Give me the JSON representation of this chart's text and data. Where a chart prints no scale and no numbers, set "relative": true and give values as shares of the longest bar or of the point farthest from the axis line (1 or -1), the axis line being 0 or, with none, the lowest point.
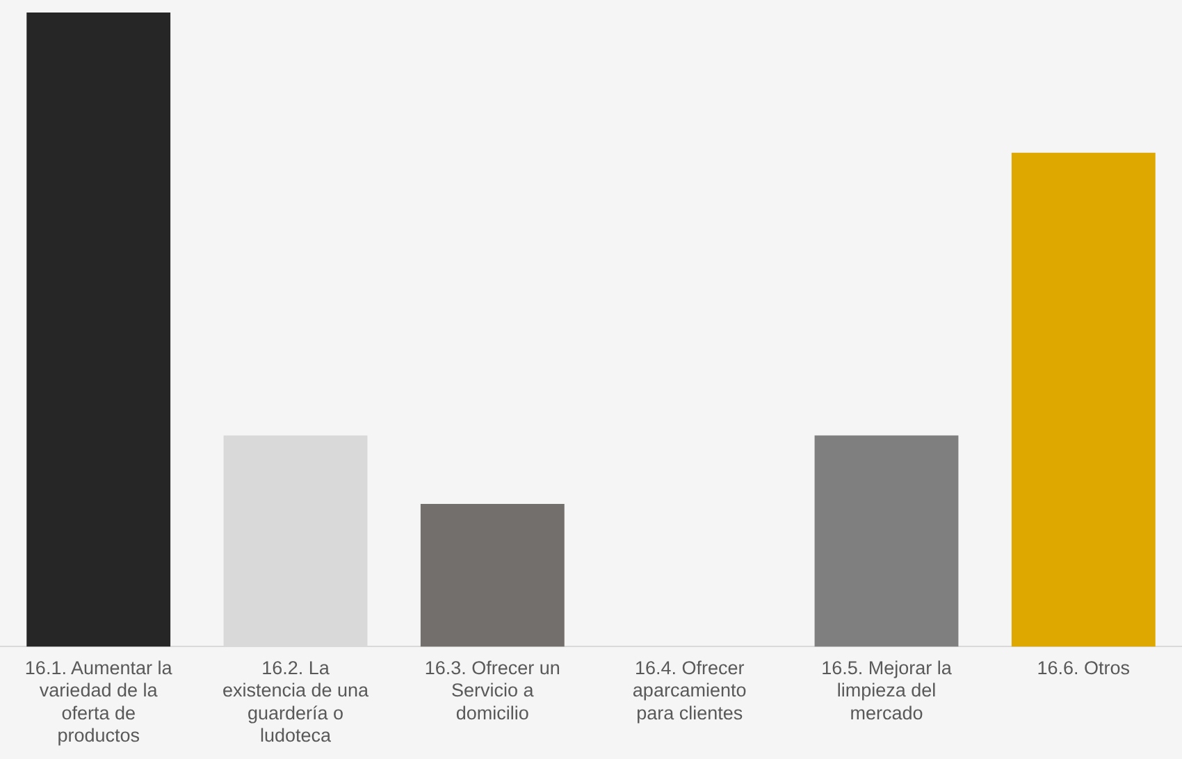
{
  "chart_data": {
    "type": "bar",
    "relative": true,
    "categories": [
      "16.1. Aumentar la variedad de la oferta de productos",
      "16.2. La existencia de una guardería o ludoteca",
      "16.3. Ofrecer un Servicio a domicilio",
      "16.4. Ofrecer aparcamiento para clientes",
      "16.5. Mejorar la limpieza del mercado",
      "16.6. Otros"
    ],
    "values": [
      1,
      0.333,
      0.225,
      0,
      0.333,
      0.779
    ],
    "colors": [
      "#262626",
      "#d9d9d9",
      "#736f6c",
      "#a5a5a5",
      "#7f7f7f",
      "#dfa800"
    ],
    "legend": false
  }
}
